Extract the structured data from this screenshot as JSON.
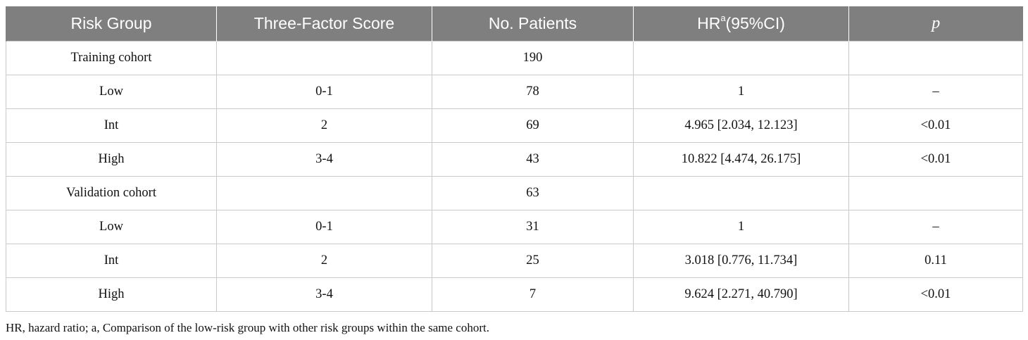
{
  "table": {
    "headers": {
      "risk_group": "Risk Group",
      "score": "Three-Factor Score",
      "patients": "No. Patients",
      "hr_prefix": "HR",
      "hr_sup": "a",
      "hr_suffix": "(95%CI)",
      "p": "p"
    },
    "rows": [
      {
        "group": "Training cohort",
        "score": "",
        "patients": "190",
        "hr": "",
        "p": ""
      },
      {
        "group": "Low",
        "score": "0-1",
        "patients": "78",
        "hr": "1",
        "p": "–"
      },
      {
        "group": "Int",
        "score": "2",
        "patients": "69",
        "hr": "4.965 [2.034, 12.123]",
        "p": "<0.01"
      },
      {
        "group": "High",
        "score": "3-4",
        "patients": "43",
        "hr": "10.822 [4.474, 26.175]",
        "p": "<0.01"
      },
      {
        "group": "Validation cohort",
        "score": "",
        "patients": "63",
        "hr": "",
        "p": ""
      },
      {
        "group": "Low",
        "score": "0-1",
        "patients": "31",
        "hr": "1",
        "p": "–"
      },
      {
        "group": "Int",
        "score": "2",
        "patients": "25",
        "hr": "3.018 [0.776, 11.734]",
        "p": "0.11"
      },
      {
        "group": "High",
        "score": "3-4",
        "patients": "7",
        "hr": "9.624 [2.271, 40.790]",
        "p": "<0.01"
      }
    ]
  },
  "footnote": "HR, hazard ratio; a, Comparison of the low-risk group with other risk groups within the same cohort.",
  "colors": {
    "header_bg": "#7f7f7f",
    "header_text": "#ffffff",
    "grid": "#c9c9c9"
  }
}
